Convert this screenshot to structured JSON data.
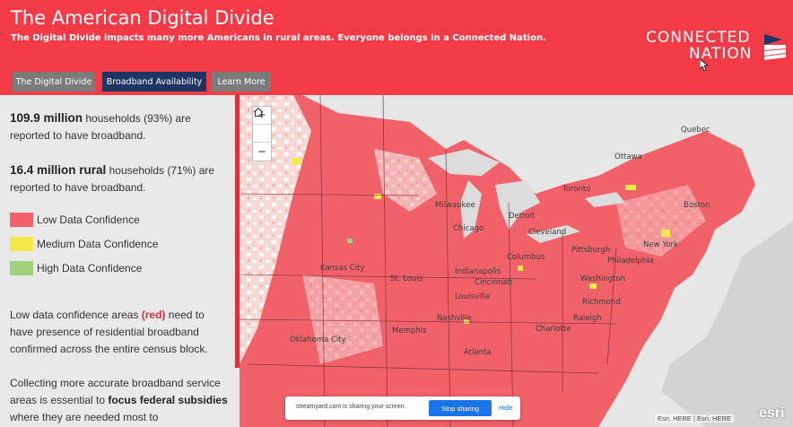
{
  "header": {
    "title": "The American Digital Divide",
    "subtitle": "The Digital Divide impacts many more Americans in rural areas. Everyone belongs in a Connected Nation.",
    "logo_line1": "CONNECTED",
    "logo_line2": "NATION",
    "accent_color": "#f23b47"
  },
  "tabs": [
    {
      "label": "The Digital Divide",
      "active": false
    },
    {
      "label": "Broadband Availability",
      "active": true
    },
    {
      "label": "Learn More",
      "active": false
    }
  ],
  "sidebar": {
    "stat1_value": "109.9 million",
    "stat1_text": " households (93%) are reported to have broadband.",
    "stat2_value": "16.4 million rural",
    "stat2_text": " households (71%) are reported to have broadband.",
    "legend": [
      {
        "label": "Low Data Confidence",
        "color": "#f2606a"
      },
      {
        "label": "Medium Data Confidence",
        "color": "#f5e94a"
      },
      {
        "label": "High Data Confidence",
        "color": "#9fd27a"
      }
    ],
    "note1_pre": "Low data confidence areas ",
    "note1_red": "(red)",
    "note1_post": " need to have presence of residential broadband confirmed across the entire census block.",
    "note2_pre": "Collecting more accurate broadband service areas is essential to ",
    "note2_bold": "focus federal subsidies",
    "note2_post": " where they are needed most to"
  },
  "map": {
    "zoom_in": "+",
    "home_icon": "home-icon",
    "zoom_out": "−",
    "cities": [
      "Quebec",
      "Ottawa",
      "Toronto",
      "Milwaukee",
      "Chicago",
      "Detroit",
      "Cleveland",
      "Pittsburgh",
      "Philadelphia",
      "New York",
      "Boston",
      "Washington",
      "Indianapolis",
      "Columbus",
      "Cincinnati",
      "Kansas City",
      "St. Louis",
      "Louisville",
      "Nashville",
      "Oklahoma City",
      "Memphis",
      "Charlotte",
      "Richmond",
      "Raleigh",
      "Atlanta"
    ],
    "attribution": "Esri, HERE | Esri, HERE",
    "esri_logo": "esri"
  },
  "share_bar": {
    "text": "streamyard.com is sharing your screen.",
    "stop_label": "Stop sharing",
    "hide_label": "Hide"
  }
}
